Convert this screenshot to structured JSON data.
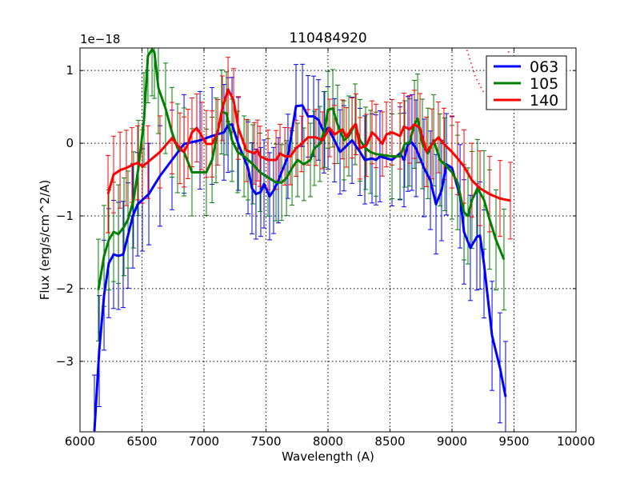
{
  "chart_data": {
    "type": "line",
    "title": "110484920",
    "xlabel": "Wavelength (A)",
    "ylabel": "Flux (erg/s/cm^2/A)",
    "y_offset_text": "1e−18",
    "xlim": [
      6000,
      10000
    ],
    "ylim": [
      -3.97,
      1.31
    ],
    "xticks": [
      6000,
      6500,
      7000,
      7500,
      8000,
      8500,
      9000,
      9500,
      10000
    ],
    "xtick_labels": [
      "6000",
      "6500",
      "7000",
      "7500",
      "8000",
      "8500",
      "9000",
      "9500",
      "10000"
    ],
    "yticks": [
      -3,
      -2,
      -1,
      0,
      1
    ],
    "ytick_labels": [
      "−3",
      "−2",
      "−1",
      "0",
      "1"
    ],
    "grid": true,
    "legend_placement": "top-right",
    "series": [
      {
        "name": "063",
        "color": "#0000ff",
        "err": 0.55,
        "x": [
          6116,
          6155,
          6194,
          6232,
          6271,
          6310,
          6348,
          6387,
          6426,
          6465,
          6503,
          6555,
          6645,
          6742,
          6839,
          6968,
          7065,
          7161,
          7194,
          7226,
          7277,
          7355,
          7387,
          7419,
          7458,
          7484,
          7529,
          7561,
          7600,
          7677,
          7742,
          7794,
          7839,
          7884,
          7923,
          7968,
          8000,
          8052,
          8097,
          8129,
          8194,
          8258,
          8297,
          8355,
          8387,
          8419,
          8516,
          8581,
          8613,
          8645,
          8677,
          8710,
          8774,
          8826,
          8871,
          8916,
          8955,
          9000,
          9065,
          9097,
          9148,
          9200,
          9226,
          9258,
          9323,
          9387,
          9432
        ],
        "y": [
          -3.96,
          -2.86,
          -2.09,
          -1.65,
          -1.53,
          -1.55,
          -1.53,
          -1.27,
          -1.0,
          -0.84,
          -0.78,
          -0.7,
          -0.45,
          -0.23,
          -0.01,
          0.04,
          0.1,
          0.15,
          0.25,
          0.26,
          -0.01,
          -0.34,
          -0.62,
          -0.7,
          -0.67,
          -0.56,
          -0.73,
          -0.65,
          -0.51,
          -0.18,
          0.51,
          0.52,
          0.37,
          0.37,
          0.32,
          0.15,
          0.21,
          0.04,
          -0.12,
          -0.07,
          0.04,
          -0.12,
          -0.23,
          -0.21,
          -0.23,
          -0.18,
          -0.23,
          -0.14,
          -0.23,
          -0.01,
          0.01,
          -0.07,
          -0.34,
          -0.51,
          -0.84,
          -0.65,
          -0.29,
          -0.34,
          -0.73,
          -1.22,
          -1.44,
          -1.29,
          -1.27,
          -1.66,
          -2.65,
          -3.09,
          -3.49
        ]
      },
      {
        "name": "105",
        "color": "#008000",
        "err": 0.5,
        "x": [
          6148,
          6194,
          6232,
          6271,
          6310,
          6355,
          6387,
          6432,
          6471,
          6516,
          6548,
          6581,
          6600,
          6632,
          6690,
          6742,
          6787,
          6839,
          6903,
          7019,
          7065,
          7097,
          7142,
          7181,
          7226,
          7271,
          7323,
          7355,
          7394,
          7452,
          7516,
          7581,
          7626,
          7665,
          7710,
          7755,
          7806,
          7858,
          7890,
          7935,
          7974,
          8000,
          8039,
          8077,
          8129,
          8168,
          8219,
          8258,
          8303,
          8342,
          8387,
          8516,
          8581,
          8619,
          8658,
          8697,
          8723,
          8761,
          8806,
          8852,
          8903,
          8942,
          9000,
          9045,
          9097,
          9129,
          9161,
          9206,
          9258,
          9303,
          9355,
          9419
        ],
        "y": [
          -2.02,
          -1.55,
          -1.33,
          -1.22,
          -1.25,
          -1.15,
          -1.05,
          -0.78,
          -0.34,
          0.32,
          1.2,
          1.29,
          1.25,
          0.76,
          0.48,
          0.15,
          -0.07,
          -0.12,
          -0.4,
          -0.4,
          -0.23,
          0.04,
          0.43,
          0.41,
          0.04,
          -0.12,
          -0.18,
          -0.23,
          -0.29,
          -0.4,
          -0.47,
          -0.54,
          -0.54,
          -0.48,
          -0.34,
          -0.23,
          -0.29,
          -0.23,
          -0.07,
          -0.01,
          0.19,
          0.46,
          0.48,
          0.26,
          0.04,
          0.1,
          0.26,
          0.04,
          -0.07,
          -0.12,
          -0.15,
          -0.18,
          -0.18,
          -0.01,
          0.01,
          0.26,
          0.34,
          -0.01,
          -0.14,
          0.04,
          -0.23,
          -0.29,
          -0.4,
          -0.54,
          -0.95,
          -1.0,
          -0.78,
          -0.62,
          -0.78,
          -1.05,
          -1.33,
          -1.6
        ]
      },
      {
        "name": "140",
        "color": "#ff0000",
        "err": 0.38,
        "x": [
          6226,
          6271,
          6323,
          6374,
          6419,
          6465,
          6503,
          6548,
          6645,
          6742,
          6806,
          6839,
          6871,
          6903,
          6942,
          6981,
          7019,
          7065,
          7110,
          7148,
          7194,
          7239,
          7277,
          7342,
          7406,
          7432,
          7452,
          7516,
          7581,
          7613,
          7652,
          7697,
          7742,
          7787,
          7839,
          7903,
          7955,
          8013,
          8052,
          8116,
          8148,
          8194,
          8226,
          8258,
          8310,
          8355,
          8387,
          8439,
          8471,
          8516,
          8581,
          8613,
          8658,
          8697,
          8742,
          8794,
          8839,
          8890,
          8935,
          9000,
          9045,
          9097,
          9161,
          9226,
          9303,
          9387,
          9471
        ],
        "y": [
          -0.7,
          -0.43,
          -0.37,
          -0.34,
          -0.3,
          -0.27,
          -0.32,
          -0.26,
          -0.12,
          0.07,
          -0.07,
          -0.12,
          -0.01,
          0.15,
          0.21,
          0.1,
          -0.01,
          -0.01,
          0.15,
          0.48,
          0.74,
          0.59,
          0.21,
          -0.1,
          -0.14,
          -0.1,
          -0.18,
          -0.23,
          -0.23,
          -0.14,
          -0.18,
          -0.18,
          -0.07,
          -0.01,
          0.08,
          0.08,
          0.04,
          0.21,
          0.12,
          0.19,
          0.08,
          0.21,
          0.26,
          -0.07,
          -0.03,
          0.15,
          0.1,
          -0.01,
          0.12,
          0.15,
          0.1,
          0.23,
          0.19,
          0.26,
          0.21,
          -0.12,
          -0.01,
          0.08,
          -0.01,
          -0.12,
          -0.21,
          -0.32,
          -0.51,
          -0.62,
          -0.7,
          -0.76,
          -0.79
        ]
      }
    ],
    "model_curve": {
      "color": "#ff0000",
      "style": "dotted",
      "x": [
        9110,
        9187,
        9252,
        9330,
        9400,
        9432,
        9471
      ],
      "y": [
        1.34,
        0.92,
        0.71,
        0.62,
        0.8,
        1.11,
        1.34
      ]
    }
  }
}
